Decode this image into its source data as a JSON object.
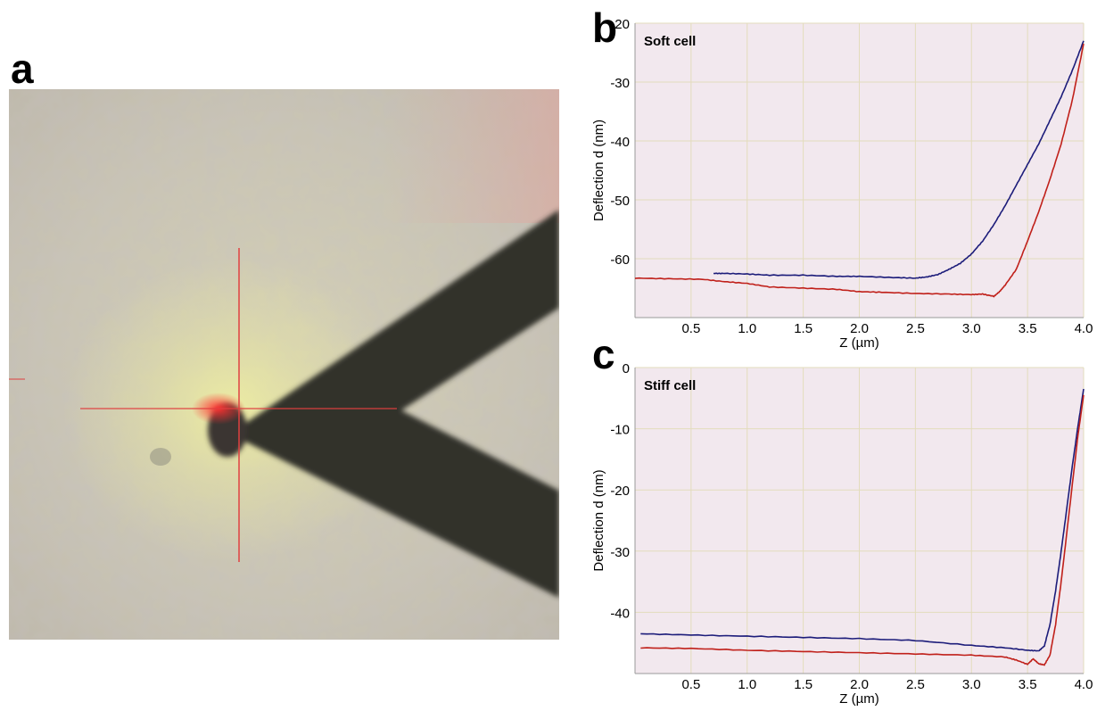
{
  "panels": {
    "a": "a",
    "b": "b",
    "c": "c"
  },
  "photo": {
    "description_icon": "cantilever-micrograph"
  },
  "colors": {
    "approach": "#1c1c7a",
    "retract": "#c0201a",
    "plot_bg": "#f2e8ee",
    "grid": "#e3dcbc"
  },
  "chart_data": [
    {
      "type": "line",
      "annotation": "Soft cell",
      "xlabel": "Z (µm)",
      "ylabel": "Deflection d (nm)",
      "xlim": [
        0.0,
        4.0
      ],
      "ylim": [
        -70,
        -20
      ],
      "xticks": [
        0.5,
        1.0,
        1.5,
        2.0,
        2.5,
        3.0,
        3.5,
        4.0
      ],
      "xtick_labels": [
        "0.5",
        "1.0",
        "1.5",
        "2.0",
        "2.5",
        "3.0",
        "3.5",
        "4.0"
      ],
      "yticks": [
        -20,
        -30,
        -40,
        -50,
        -60
      ],
      "ytick_labels": [
        "-20",
        "-30",
        "-40",
        "-50",
        "-60"
      ],
      "grid": true,
      "series": [
        {
          "color": "#1c1c7a",
          "x": [
            0.7,
            0.8,
            1.0,
            1.2,
            1.5,
            1.8,
            2.0,
            2.3,
            2.5,
            2.6,
            2.7,
            2.8,
            2.9,
            3.0,
            3.1,
            3.2,
            3.3,
            3.4,
            3.5,
            3.6,
            3.7,
            3.8,
            3.9,
            4.0
          ],
          "y": [
            -62.5,
            -62.5,
            -62.6,
            -62.8,
            -62.8,
            -63.0,
            -63.0,
            -63.2,
            -63.3,
            -63.1,
            -62.7,
            -61.8,
            -60.8,
            -59.2,
            -57.0,
            -54.2,
            -51.0,
            -47.5,
            -44.0,
            -40.5,
            -36.5,
            -32.5,
            -28.0,
            -23.0
          ]
        },
        {
          "color": "#c0201a",
          "x": [
            0.0,
            0.3,
            0.6,
            0.8,
            1.0,
            1.2,
            1.5,
            1.8,
            2.0,
            2.2,
            2.5,
            2.8,
            3.0,
            3.1,
            3.2,
            3.25,
            3.3,
            3.4,
            3.5,
            3.6,
            3.7,
            3.8,
            3.9,
            4.0
          ],
          "y": [
            -63.3,
            -63.4,
            -63.5,
            -63.9,
            -64.2,
            -64.8,
            -65.0,
            -65.2,
            -65.6,
            -65.7,
            -65.9,
            -66.0,
            -66.1,
            -66.0,
            -66.4,
            -65.6,
            -64.5,
            -61.8,
            -57.0,
            -52.0,
            -46.5,
            -40.5,
            -33.0,
            -23.5
          ]
        }
      ]
    },
    {
      "type": "line",
      "annotation": "Stiff cell",
      "xlabel": "Z (µm)",
      "ylabel": "Deflection d (nm)",
      "xlim": [
        0.0,
        4.0
      ],
      "ylim": [
        -50,
        0
      ],
      "xticks": [
        0.5,
        1.0,
        1.5,
        2.0,
        2.5,
        3.0,
        3.5,
        4.0
      ],
      "xtick_labels": [
        "0.5",
        "1.0",
        "1.5",
        "2.0",
        "2.5",
        "3.0",
        "3.5",
        "4.0"
      ],
      "yticks": [
        0,
        -10,
        -20,
        -30,
        -40
      ],
      "ytick_labels": [
        "0",
        "-10",
        "-20",
        "-30",
        "-40"
      ],
      "grid": true,
      "series": [
        {
          "color": "#1c1c7a",
          "x": [
            0.05,
            0.5,
            1.0,
            1.5,
            2.0,
            2.5,
            3.0,
            3.3,
            3.5,
            3.6,
            3.65,
            3.7,
            3.75,
            3.8,
            3.85,
            3.9,
            3.95,
            4.0
          ],
          "y": [
            -43.5,
            -43.7,
            -43.9,
            -44.1,
            -44.3,
            -44.6,
            -45.4,
            -45.8,
            -46.2,
            -46.3,
            -45.5,
            -42.0,
            -36.5,
            -30.0,
            -23.0,
            -16.0,
            -9.5,
            -3.5
          ]
        },
        {
          "color": "#c0201a",
          "x": [
            0.05,
            0.5,
            1.0,
            1.5,
            2.0,
            2.5,
            3.0,
            3.3,
            3.4,
            3.5,
            3.55,
            3.6,
            3.65,
            3.7,
            3.75,
            3.8,
            3.85,
            3.9,
            3.95,
            4.0
          ],
          "y": [
            -45.8,
            -45.9,
            -46.2,
            -46.4,
            -46.6,
            -46.8,
            -47.0,
            -47.3,
            -47.8,
            -48.5,
            -47.6,
            -48.4,
            -48.6,
            -47.0,
            -42.0,
            -35.0,
            -27.0,
            -19.0,
            -11.0,
            -4.5
          ]
        }
      ]
    }
  ]
}
